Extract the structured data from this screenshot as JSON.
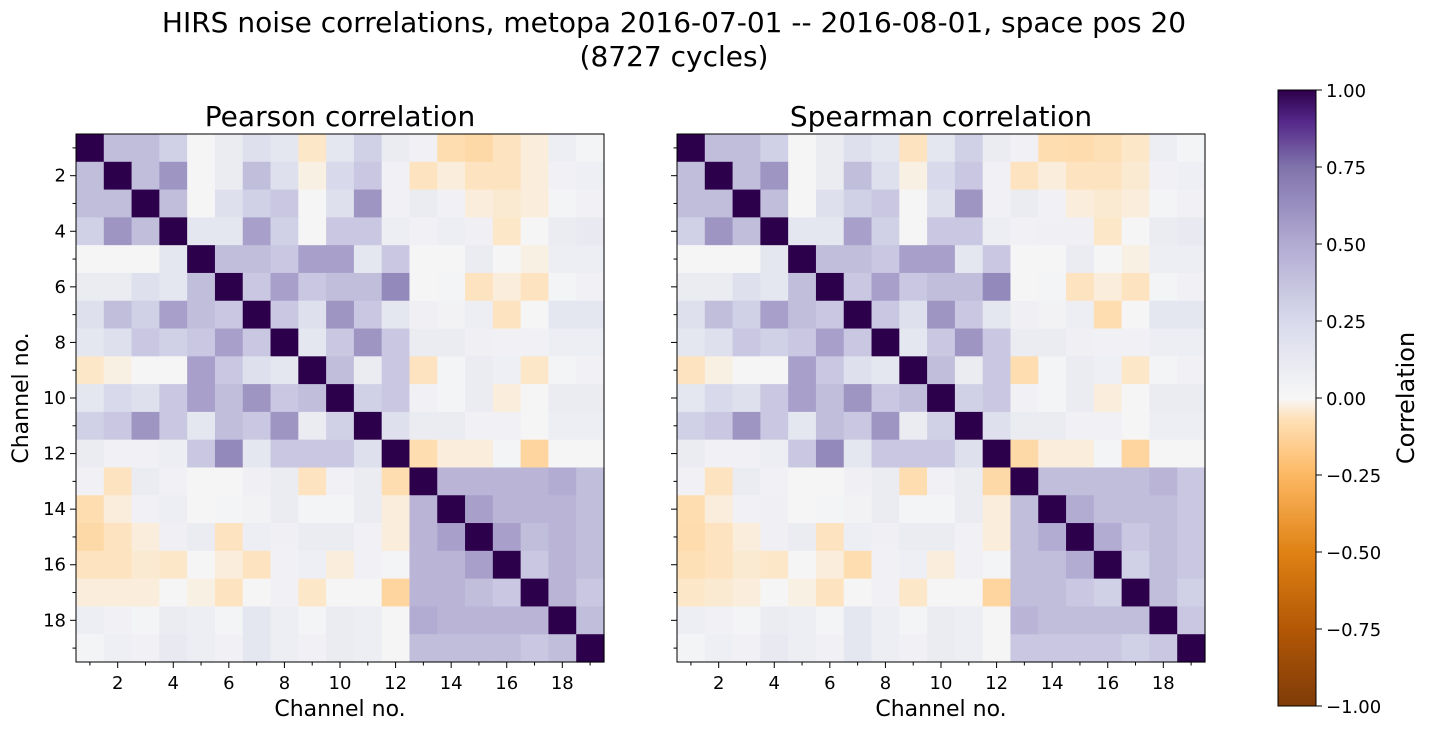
{
  "figure": {
    "suptitle_line1": "HIRS noise correlations, metopa 2016-07-01 -- 2016-08-01, space pos 20",
    "suptitle_line2": "(8727 cycles)"
  },
  "colorbar": {
    "label": "Correlation",
    "ticks": [
      "1.00",
      "0.75",
      "0.50",
      "0.25",
      "0.00",
      "−0.25",
      "−0.50",
      "−0.75",
      "−1.00"
    ],
    "tick_values": [
      1.0,
      0.75,
      0.5,
      0.25,
      0.0,
      -0.25,
      -0.5,
      -0.75,
      -1.0
    ],
    "colormap": "PuOr",
    "stops": [
      {
        "v": -1.0,
        "c": "#7f3b08"
      },
      {
        "v": -0.75,
        "c": "#b35806"
      },
      {
        "v": -0.5,
        "c": "#e08214"
      },
      {
        "v": -0.25,
        "c": "#fdb863"
      },
      {
        "v": -0.07,
        "c": "#fee0b6"
      },
      {
        "v": 0.0,
        "c": "#f7f7f7"
      },
      {
        "v": 0.25,
        "c": "#d8daeb"
      },
      {
        "v": 0.5,
        "c": "#b2abd2"
      },
      {
        "v": 0.75,
        "c": "#8073ac"
      },
      {
        "v": 0.9,
        "c": "#542788"
      },
      {
        "v": 1.0,
        "c": "#2d004b"
      }
    ]
  },
  "chart_data": [
    {
      "type": "heatmap",
      "title": "Pearson correlation",
      "xlabel": "Channel no.",
      "ylabel": "Channel no.",
      "x_ticks": [
        "2",
        "4",
        "6",
        "8",
        "10",
        "12",
        "14",
        "16",
        "18"
      ],
      "y_ticks": [
        "2",
        "4",
        "6",
        "8",
        "10",
        "12",
        "14",
        "16",
        "18"
      ],
      "channels": [
        1,
        2,
        3,
        4,
        5,
        6,
        7,
        8,
        9,
        10,
        11,
        12,
        13,
        14,
        15,
        16,
        17,
        18,
        19
      ],
      "clim": [
        -1,
        1
      ],
      "matrix": [
        [
          1.0,
          0.4,
          0.4,
          0.3,
          0.02,
          0.1,
          0.2,
          0.15,
          -0.05,
          0.15,
          0.3,
          0.1,
          0.05,
          -0.08,
          -0.1,
          -0.06,
          -0.03,
          0.08,
          0.03
        ],
        [
          0.4,
          1.0,
          0.4,
          0.6,
          0.02,
          0.1,
          0.4,
          0.2,
          -0.02,
          0.25,
          0.35,
          0.05,
          -0.06,
          -0.03,
          -0.06,
          -0.06,
          -0.03,
          0.05,
          0.07
        ],
        [
          0.4,
          0.4,
          1.0,
          0.4,
          0.02,
          0.2,
          0.3,
          0.35,
          0.02,
          0.2,
          0.6,
          0.05,
          0.1,
          0.05,
          -0.03,
          -0.04,
          -0.03,
          0.03,
          0.05
        ],
        [
          0.3,
          0.6,
          0.4,
          1.0,
          0.15,
          0.15,
          0.55,
          0.3,
          0.02,
          0.35,
          0.35,
          0.08,
          0.05,
          0.08,
          0.06,
          -0.05,
          0.02,
          0.1,
          0.12
        ],
        [
          0.02,
          0.02,
          0.02,
          0.15,
          1.0,
          0.4,
          0.4,
          0.35,
          0.55,
          0.55,
          0.15,
          0.35,
          0.02,
          0.02,
          0.1,
          0.02,
          -0.02,
          0.08,
          0.08
        ],
        [
          0.1,
          0.1,
          0.2,
          0.15,
          0.4,
          1.0,
          0.35,
          0.55,
          0.35,
          0.4,
          0.4,
          0.65,
          0.02,
          0.03,
          -0.06,
          -0.03,
          -0.06,
          0.03,
          0.05
        ],
        [
          0.2,
          0.4,
          0.3,
          0.55,
          0.4,
          0.35,
          1.0,
          0.35,
          0.2,
          0.6,
          0.35,
          0.15,
          0.06,
          0.04,
          0.08,
          -0.06,
          0.02,
          0.15,
          0.15
        ],
        [
          0.15,
          0.2,
          0.35,
          0.3,
          0.35,
          0.55,
          0.35,
          1.0,
          0.15,
          0.35,
          0.6,
          0.35,
          0.1,
          0.1,
          0.06,
          0.05,
          0.05,
          0.08,
          0.08
        ],
        [
          -0.05,
          -0.02,
          0.02,
          0.02,
          0.55,
          0.35,
          0.2,
          0.15,
          1.0,
          0.4,
          0.1,
          0.35,
          -0.06,
          0.03,
          0.1,
          0.07,
          -0.05,
          0.03,
          0.05
        ],
        [
          0.15,
          0.25,
          0.2,
          0.35,
          0.55,
          0.4,
          0.6,
          0.35,
          0.4,
          1.0,
          0.3,
          0.35,
          0.05,
          0.03,
          0.1,
          -0.03,
          0.02,
          0.1,
          0.1
        ],
        [
          0.3,
          0.35,
          0.6,
          0.35,
          0.15,
          0.4,
          0.35,
          0.6,
          0.1,
          0.3,
          1.0,
          0.2,
          0.1,
          0.1,
          0.05,
          0.05,
          0.02,
          0.08,
          0.08
        ],
        [
          0.1,
          0.05,
          0.05,
          0.08,
          0.35,
          0.65,
          0.15,
          0.35,
          0.35,
          0.35,
          0.2,
          1.0,
          -0.08,
          -0.03,
          -0.03,
          0.03,
          -0.12,
          0.02,
          0.02
        ],
        [
          0.05,
          -0.06,
          0.1,
          0.05,
          0.02,
          0.02,
          0.06,
          0.1,
          -0.06,
          0.05,
          0.1,
          -0.08,
          1.0,
          0.45,
          0.45,
          0.45,
          0.45,
          0.5,
          0.4
        ],
        [
          -0.08,
          -0.03,
          0.05,
          0.08,
          0.02,
          0.03,
          0.04,
          0.1,
          0.03,
          0.03,
          0.1,
          -0.03,
          0.45,
          1.0,
          0.55,
          0.45,
          0.45,
          0.45,
          0.4
        ],
        [
          -0.1,
          -0.06,
          -0.03,
          0.06,
          0.1,
          -0.06,
          0.08,
          0.06,
          0.1,
          0.1,
          0.05,
          -0.03,
          0.45,
          0.55,
          1.0,
          0.55,
          0.4,
          0.45,
          0.4
        ],
        [
          -0.06,
          -0.06,
          -0.04,
          -0.05,
          0.02,
          -0.03,
          -0.06,
          0.05,
          0.07,
          -0.03,
          0.05,
          0.03,
          0.45,
          0.45,
          0.55,
          1.0,
          0.35,
          0.45,
          0.4
        ],
        [
          -0.03,
          -0.03,
          -0.03,
          0.02,
          -0.02,
          -0.06,
          0.02,
          0.05,
          -0.05,
          0.02,
          0.02,
          -0.12,
          0.45,
          0.45,
          0.4,
          0.35,
          1.0,
          0.45,
          0.35
        ],
        [
          0.08,
          0.05,
          0.03,
          0.1,
          0.08,
          0.03,
          0.15,
          0.08,
          0.03,
          0.1,
          0.08,
          0.02,
          0.5,
          0.45,
          0.45,
          0.45,
          0.45,
          1.0,
          0.4
        ],
        [
          0.03,
          0.07,
          0.05,
          0.12,
          0.08,
          0.05,
          0.15,
          0.08,
          0.05,
          0.1,
          0.08,
          0.02,
          0.4,
          0.4,
          0.4,
          0.4,
          0.35,
          0.4,
          1.0
        ]
      ]
    },
    {
      "type": "heatmap",
      "title": "Spearman correlation",
      "xlabel": "Channel no.",
      "ylabel": "",
      "x_ticks": [
        "2",
        "4",
        "6",
        "8",
        "10",
        "12",
        "14",
        "16",
        "18"
      ],
      "y_ticks": [],
      "channels": [
        1,
        2,
        3,
        4,
        5,
        6,
        7,
        8,
        9,
        10,
        11,
        12,
        13,
        14,
        15,
        16,
        17,
        18,
        19
      ],
      "clim": [
        -1,
        1
      ],
      "matrix": [
        [
          1.0,
          0.4,
          0.4,
          0.3,
          0.02,
          0.1,
          0.2,
          0.15,
          -0.06,
          0.15,
          0.3,
          0.1,
          0.05,
          -0.08,
          -0.09,
          -0.07,
          -0.05,
          0.08,
          0.03
        ],
        [
          0.4,
          1.0,
          0.4,
          0.6,
          0.02,
          0.1,
          0.4,
          0.2,
          -0.02,
          0.25,
          0.35,
          0.05,
          -0.06,
          -0.03,
          -0.06,
          -0.06,
          -0.04,
          0.05,
          0.07
        ],
        [
          0.4,
          0.4,
          1.0,
          0.4,
          0.02,
          0.2,
          0.3,
          0.35,
          0.02,
          0.2,
          0.6,
          0.05,
          0.1,
          0.05,
          -0.03,
          -0.04,
          -0.03,
          0.03,
          0.05
        ],
        [
          0.3,
          0.6,
          0.4,
          1.0,
          0.15,
          0.15,
          0.55,
          0.3,
          0.02,
          0.35,
          0.35,
          0.08,
          0.05,
          0.06,
          0.06,
          -0.05,
          0.02,
          0.1,
          0.12
        ],
        [
          0.02,
          0.02,
          0.02,
          0.15,
          1.0,
          0.4,
          0.4,
          0.35,
          0.55,
          0.55,
          0.15,
          0.35,
          0.02,
          0.02,
          0.1,
          0.02,
          -0.02,
          0.08,
          0.08
        ],
        [
          0.1,
          0.1,
          0.2,
          0.15,
          0.4,
          1.0,
          0.35,
          0.55,
          0.35,
          0.4,
          0.4,
          0.65,
          0.02,
          0.03,
          -0.06,
          -0.03,
          -0.06,
          0.03,
          0.05
        ],
        [
          0.2,
          0.4,
          0.3,
          0.55,
          0.4,
          0.35,
          1.0,
          0.35,
          0.2,
          0.6,
          0.35,
          0.15,
          0.06,
          0.04,
          0.08,
          -0.08,
          0.02,
          0.15,
          0.15
        ],
        [
          0.15,
          0.2,
          0.35,
          0.3,
          0.35,
          0.55,
          0.35,
          1.0,
          0.15,
          0.35,
          0.6,
          0.35,
          0.1,
          0.1,
          0.06,
          0.05,
          0.05,
          0.08,
          0.08
        ],
        [
          -0.06,
          -0.02,
          0.02,
          0.02,
          0.55,
          0.35,
          0.2,
          0.15,
          1.0,
          0.4,
          0.1,
          0.35,
          -0.08,
          0.03,
          0.1,
          0.07,
          -0.05,
          0.03,
          0.05
        ],
        [
          0.15,
          0.25,
          0.2,
          0.35,
          0.55,
          0.4,
          0.6,
          0.35,
          0.4,
          1.0,
          0.3,
          0.35,
          0.05,
          0.03,
          0.1,
          -0.03,
          0.02,
          0.1,
          0.1
        ],
        [
          0.3,
          0.35,
          0.6,
          0.35,
          0.15,
          0.4,
          0.35,
          0.6,
          0.1,
          0.3,
          1.0,
          0.2,
          0.1,
          0.1,
          0.05,
          0.05,
          0.02,
          0.08,
          0.08
        ],
        [
          0.1,
          0.05,
          0.05,
          0.08,
          0.35,
          0.65,
          0.15,
          0.35,
          0.35,
          0.35,
          0.2,
          1.0,
          -0.1,
          -0.03,
          -0.03,
          0.03,
          -0.12,
          0.02,
          0.02
        ],
        [
          0.05,
          -0.06,
          0.1,
          0.05,
          0.02,
          0.02,
          0.06,
          0.1,
          -0.08,
          0.05,
          0.1,
          -0.1,
          1.0,
          0.4,
          0.4,
          0.4,
          0.4,
          0.45,
          0.35
        ],
        [
          -0.08,
          -0.03,
          0.05,
          0.06,
          0.02,
          0.03,
          0.04,
          0.1,
          0.03,
          0.03,
          0.1,
          -0.03,
          0.4,
          1.0,
          0.5,
          0.4,
          0.4,
          0.4,
          0.35
        ],
        [
          -0.09,
          -0.06,
          -0.03,
          0.06,
          0.1,
          -0.06,
          0.08,
          0.06,
          0.1,
          0.1,
          0.05,
          -0.03,
          0.4,
          0.5,
          1.0,
          0.5,
          0.35,
          0.4,
          0.35
        ],
        [
          -0.07,
          -0.06,
          -0.04,
          -0.05,
          0.02,
          -0.03,
          -0.08,
          0.05,
          0.07,
          -0.03,
          0.05,
          0.03,
          0.4,
          0.4,
          0.5,
          1.0,
          0.3,
          0.4,
          0.35
        ],
        [
          -0.05,
          -0.04,
          -0.03,
          0.02,
          -0.02,
          -0.06,
          0.02,
          0.05,
          -0.05,
          0.02,
          0.02,
          -0.12,
          0.4,
          0.4,
          0.35,
          0.3,
          1.0,
          0.4,
          0.3
        ],
        [
          0.08,
          0.05,
          0.03,
          0.1,
          0.08,
          0.03,
          0.15,
          0.08,
          0.03,
          0.1,
          0.08,
          0.02,
          0.45,
          0.4,
          0.4,
          0.4,
          0.4,
          1.0,
          0.35
        ],
        [
          0.03,
          0.07,
          0.05,
          0.12,
          0.08,
          0.05,
          0.15,
          0.08,
          0.05,
          0.1,
          0.08,
          0.02,
          0.35,
          0.35,
          0.35,
          0.35,
          0.3,
          0.35,
          1.0
        ]
      ]
    }
  ]
}
